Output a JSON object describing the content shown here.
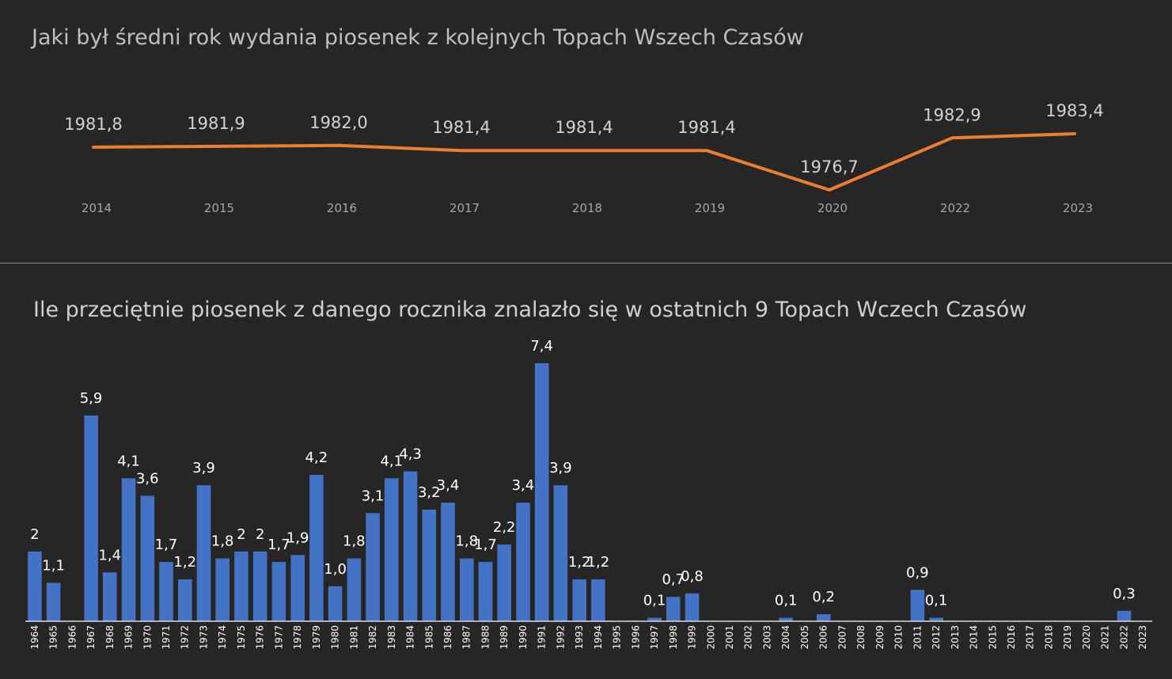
{
  "chart_data": [
    {
      "type": "line",
      "title": "Jaki był średni rok wydania piosenek z kolejnych Topach Wszech Czasów",
      "categories": [
        "2014",
        "2015",
        "2016",
        "2017",
        "2018",
        "2019",
        "2020",
        "2022",
        "2023"
      ],
      "values": [
        1981.8,
        1981.9,
        1982.0,
        1981.4,
        1981.4,
        1981.4,
        1976.7,
        1982.9,
        1983.4
      ],
      "data_labels": [
        "1981,8",
        "1981,9",
        "1982,0",
        "1981,4",
        "1981,4",
        "1981,4",
        "1976,7",
        "1982,9",
        "1983,4"
      ],
      "line_color": "#ed7d31",
      "grid": false,
      "legend": "none"
    },
    {
      "type": "bar",
      "title": "Ile przeciętnie piosenek z danego rocznika znalazło się w ostatnich 9 Topach Wczech Czasów",
      "categories": [
        "1964",
        "1965",
        "1966",
        "1967",
        "1968",
        "1969",
        "1970",
        "1971",
        "1972",
        "1973",
        "1974",
        "1975",
        "1976",
        "1977",
        "1978",
        "1979",
        "1980",
        "1981",
        "1982",
        "1983",
        "1984",
        "1985",
        "1986",
        "1987",
        "1988",
        "1989",
        "1990",
        "1991",
        "1992",
        "1993",
        "1994",
        "1995",
        "1996",
        "1997",
        "1998",
        "1999",
        "2000",
        "2001",
        "2002",
        "2003",
        "2004",
        "2005",
        "2006",
        "2007",
        "2008",
        "2009",
        "2010",
        "2011",
        "2012",
        "2013",
        "2014",
        "2015",
        "2016",
        "2017",
        "2018",
        "2019",
        "2020",
        "2021",
        "2022",
        "2023"
      ],
      "values": [
        2,
        1.1,
        0,
        5.9,
        1.4,
        4.1,
        3.6,
        1.7,
        1.2,
        3.9,
        1.8,
        2,
        2,
        1.7,
        1.9,
        4.2,
        1.0,
        1.8,
        3.1,
        4.1,
        4.3,
        3.2,
        3.4,
        1.8,
        1.7,
        2.2,
        3.4,
        7.4,
        3.9,
        1.2,
        1.2,
        0,
        0,
        0.1,
        0.7,
        0.8,
        0,
        0,
        0,
        0,
        0.1,
        0,
        0.2,
        0,
        0,
        0,
        0,
        0.9,
        0.1,
        0,
        0,
        0,
        0,
        0,
        0,
        0,
        0,
        0,
        0.3,
        0
      ],
      "data_labels": [
        "2",
        "1,1",
        "",
        "5,9",
        "1,4",
        "4,1",
        "3,6",
        "1,7",
        "1,2",
        "3,9",
        "1,8",
        "2",
        "2",
        "1,7",
        "1,9",
        "4,2",
        "1,0",
        "1,8",
        "3,1",
        "4,1",
        "4,3",
        "3,2",
        "3,4",
        "1,8",
        "1,7",
        "2,2",
        "3,4",
        "7,4",
        "3,9",
        "1,2",
        "1,2",
        "",
        "",
        "0,1",
        "0,7",
        "0,8",
        "",
        "",
        "",
        "",
        "0,1",
        "",
        "0,2",
        "",
        "",
        "",
        "",
        "0,9",
        "0,1",
        "",
        "",
        "",
        "",
        "",
        "",
        "",
        "",
        "",
        "0,3",
        ""
      ],
      "bar_color": "#4472c4",
      "ylim": [
        0,
        7.4
      ],
      "grid": false,
      "legend": "none"
    }
  ]
}
